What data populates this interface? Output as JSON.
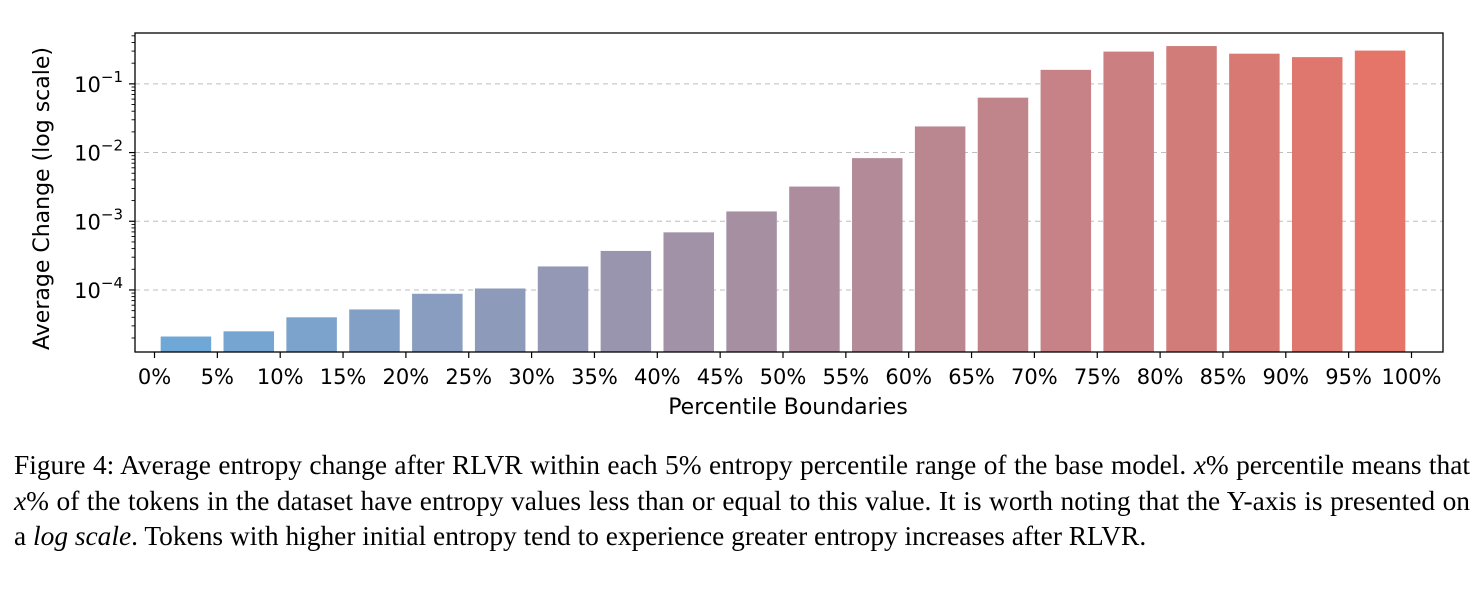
{
  "chart_data": {
    "type": "bar",
    "categories": [
      "0%-5%",
      "5%-10%",
      "10%-15%",
      "15%-20%",
      "20%-25%",
      "25%-30%",
      "30%-35%",
      "35%-40%",
      "40%-45%",
      "45%-50%",
      "50%-55%",
      "55%-60%",
      "60%-65%",
      "65%-70%",
      "70%-75%",
      "75%-80%",
      "80%-85%",
      "85%-90%",
      "90%-95%",
      "95%-100%"
    ],
    "boundaries": [
      "0%",
      "5%",
      "10%",
      "15%",
      "20%",
      "25%",
      "30%",
      "35%",
      "40%",
      "45%",
      "50%",
      "55%",
      "60%",
      "65%",
      "70%",
      "75%",
      "80%",
      "85%",
      "90%",
      "95%",
      "100%"
    ],
    "values": [
      2.1e-05,
      2.5e-05,
      4e-05,
      5.2e-05,
      8.8e-05,
      0.000105,
      0.00022,
      0.00037,
      0.00069,
      0.00139,
      0.0032,
      0.0083,
      0.024,
      0.063,
      0.16,
      0.295,
      0.355,
      0.275,
      0.245,
      0.305
    ],
    "yscale": "log",
    "ylim": [
      1.25e-05,
      0.55
    ],
    "yticks": [
      {
        "value": 0.0001,
        "base": "10",
        "exp": "−4"
      },
      {
        "value": 0.001,
        "base": "10",
        "exp": "−3"
      },
      {
        "value": 0.01,
        "base": "10",
        "exp": "−2"
      },
      {
        "value": 0.1,
        "base": "10",
        "exp": "−1"
      }
    ],
    "xlabel": "Percentile Boundaries",
    "ylabel": "Average Change (log scale)",
    "grid": "y-dashed",
    "colors": {
      "start": "#6fa8d6",
      "end": "#e57469",
      "grid": "#bdbdbd",
      "axis": "#000000"
    }
  },
  "caption": {
    "lead": "Figure 4: Average entropy change after RLVR within each 5% entropy percentile range of the base model. ",
    "x1": "x",
    "p1": "% percentile means that ",
    "x2": "x",
    "p2": "% of the tokens in the dataset have entropy values less than or equal to this value. It is worth noting that the Y-axis is presented on a ",
    "log": "log scale",
    "tail": ". Tokens with higher initial entropy tend to experience greater entropy increases after RLVR."
  }
}
